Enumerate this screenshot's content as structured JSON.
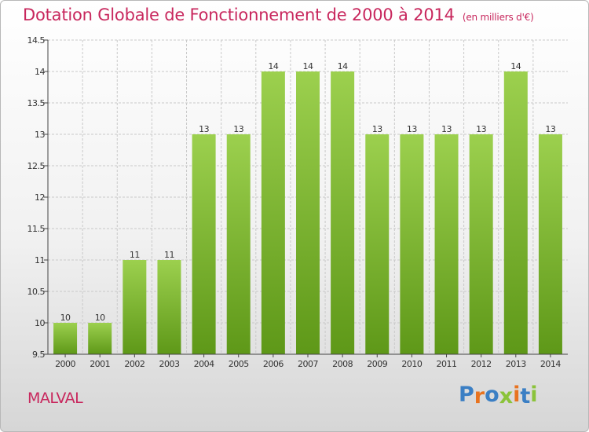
{
  "title": "Dotation Globale de Fonctionnement de 2000 à 2014",
  "subtitle": "(en milliers d'€)",
  "place": "MALVAL",
  "logo": {
    "text": "Proxiti",
    "letter_colors": [
      "#3b7fc4",
      "#e8731f",
      "#3b7fc4",
      "#8bc33a",
      "#e8731f",
      "#3b7fc4",
      "#8bc33a"
    ]
  },
  "colors": {
    "bar_top": "#9cd04e",
    "bar_bottom": "#5e9818",
    "grid": "#c9c9c9",
    "axis": "#444444",
    "text": "#333333"
  },
  "chart_data": {
    "type": "bar",
    "categories": [
      "2000",
      "2001",
      "2002",
      "2003",
      "2004",
      "2005",
      "2006",
      "2007",
      "2008",
      "2009",
      "2010",
      "2011",
      "2012",
      "2013",
      "2014"
    ],
    "values": [
      10,
      10,
      11,
      11,
      13,
      13,
      14,
      14,
      14,
      13,
      13,
      13,
      13,
      14,
      13
    ],
    "ylim": [
      9.5,
      14.5
    ],
    "yticks": [
      "9.5",
      "10",
      "10.5",
      "11",
      "11.5",
      "12",
      "12.5",
      "13",
      "13.5",
      "14",
      "14.5"
    ],
    "grid": true,
    "data_labels": [
      "10",
      "10",
      "11",
      "11",
      "13",
      "13",
      "14",
      "14",
      "14",
      "13",
      "13",
      "13",
      "13",
      "14",
      "13"
    ]
  }
}
